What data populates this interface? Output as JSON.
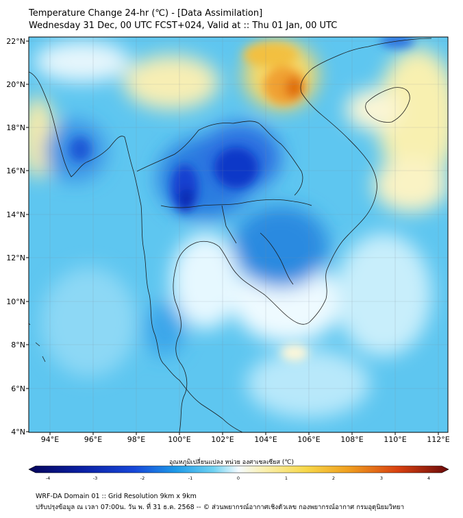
{
  "title_line1": "Temperature Change 24-hr (℃) - [Data Assimilation]",
  "title_line2": "Wednesday 31 Dec, 00 UTC FCST+024, Valid at :: Thu 01 Jan, 00 UTC",
  "map": {
    "lon_ticks": [
      "94°E",
      "96°E",
      "98°E",
      "100°E",
      "102°E",
      "104°E",
      "106°E",
      "108°E",
      "110°E",
      "112°E"
    ],
    "lat_ticks": [
      "22°N",
      "20°N",
      "18°N",
      "16°N",
      "14°N",
      "12°N",
      "10°N",
      "8°N",
      "6°N",
      "4°N"
    ],
    "lon_range": [
      93,
      112.5
    ],
    "lat_range": [
      4,
      22.2
    ],
    "field": "24-hr temperature change",
    "colors": {
      "cold": "#0a1ea0",
      "cool": "#4fb8f0",
      "neutral": "#f4fbff",
      "warm": "#f7e57a",
      "hot": "#e07a10"
    }
  },
  "colorbar": {
    "label": "อุณหภูมิเปลี่ยนแปลง หน่วย องศาเซลเซียส (℃)",
    "ticks": [
      "-4",
      "-3",
      "-2",
      "-1",
      "0",
      "1",
      "2",
      "3",
      "4"
    ],
    "range": [
      -4,
      4
    ]
  },
  "footer": {
    "line1": "WRF-DA Domain 01 :: Grid Resolution 9km x 9km",
    "line2": "ปรับปรุงข้อมูล ณ เวลา 07:00น. วัน พ. ที่ 31 ธ.ค. 2568 -- © ส่วนพยากรณ์อากาศเชิงตัวเลข กองพยากรณ์อากาศ กรมอุตุนิยมวิทยา"
  }
}
